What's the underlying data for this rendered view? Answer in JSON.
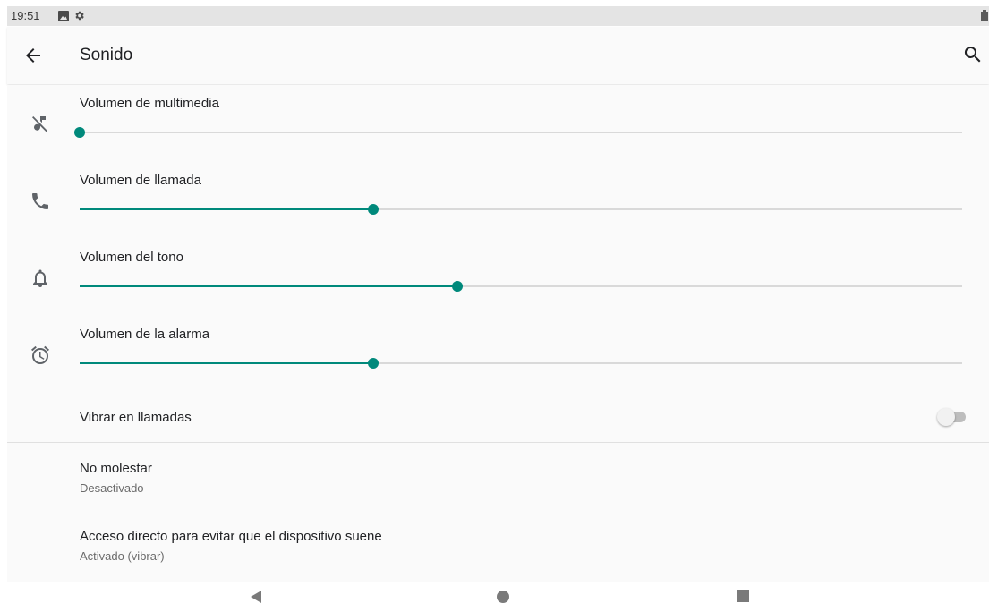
{
  "status_bar": {
    "time": "19:51",
    "icons": [
      "image-icon",
      "gear-icon",
      "battery-icon"
    ]
  },
  "app_bar": {
    "title": "Sonido",
    "back_icon": "arrow-back-icon",
    "search_icon": "search-icon"
  },
  "volume_sliders": [
    {
      "label": "Volumen de multimedia",
      "icon": "music-off-icon",
      "level": 0.0
    },
    {
      "label": "Volumen de llamada",
      "icon": "phone-icon",
      "level": 0.333
    },
    {
      "label": "Volumen del tono",
      "icon": "bell-icon",
      "level": 0.428
    },
    {
      "label": "Volumen de la alarma",
      "icon": "alarm-icon",
      "level": 0.333
    }
  ],
  "vibrate": {
    "label": "Vibrar en llamadas",
    "enabled": false
  },
  "settings": [
    {
      "title": "No molestar",
      "summary": "Desactivado"
    },
    {
      "title": "Acceso directo para evitar que el dispositivo suene",
      "summary": "Activado (vibrar)"
    }
  ],
  "nav_bar": {
    "icons": [
      "back-triangle-icon",
      "home-circle-icon",
      "recents-square-icon"
    ]
  },
  "colors": {
    "accent": "#00897b",
    "track": "#d9d9d9",
    "status_bar": "#e4e4e4",
    "background": "#fafafa"
  }
}
